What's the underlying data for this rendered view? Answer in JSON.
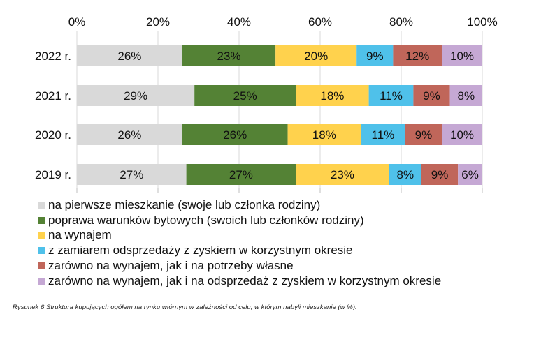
{
  "chart_data": {
    "type": "bar",
    "orientation": "horizontal",
    "stacked": true,
    "categories": [
      "2022 r.",
      "2021 r.",
      "2020 r.",
      "2019 r."
    ],
    "xlim": [
      0,
      100
    ],
    "x_ticks": [
      "0%",
      "20%",
      "40%",
      "60%",
      "80%",
      "100%"
    ],
    "x_tick_values": [
      0,
      20,
      40,
      60,
      80,
      100
    ],
    "grid": true,
    "legend_position": "bottom",
    "series": [
      {
        "name": "na pierwsze mieszkanie (swoje lub członka rodziny)",
        "color": "#d9d9d9",
        "values": [
          26,
          29,
          26,
          27
        ],
        "labels": [
          "26%",
          "29%",
          "26%",
          "27%"
        ]
      },
      {
        "name": "poprawa warunków bytowych (swoich lub członków rodziny)",
        "color": "#548235",
        "values": [
          23,
          25,
          26,
          27
        ],
        "labels": [
          "23%",
          "25%",
          "26%",
          "27%"
        ]
      },
      {
        "name": "na wynajem",
        "color": "#ffd24d",
        "values": [
          20,
          18,
          18,
          23
        ],
        "labels": [
          "20%",
          "18%",
          "18%",
          "23%"
        ]
      },
      {
        "name": "z zamiarem odsprzedaży z zyskiem w korzystnym okresie",
        "color": "#4fc1ea",
        "values": [
          9,
          11,
          11,
          8
        ],
        "labels": [
          "9%",
          "11%",
          "11%",
          "8%"
        ]
      },
      {
        "name": "zarówno na wynajem, jak i na potrzeby własne",
        "color": "#c0665a",
        "values": [
          12,
          9,
          9,
          9
        ],
        "labels": [
          "12%",
          "9%",
          "9%",
          "9%"
        ]
      },
      {
        "name": "zarówno na wynajem, jak i na odsprzedaż z zyskiem w korzystnym okresie",
        "color": "#c5a8d4",
        "values": [
          10,
          8,
          10,
          6
        ],
        "labels": [
          "10%",
          "8%",
          "10%",
          "6%"
        ]
      }
    ],
    "caption": "Rysunek 6 Struktura kupujących ogółem na rynku wtórnym w zależności od celu, w którym nabyli mieszkanie (w %)."
  }
}
